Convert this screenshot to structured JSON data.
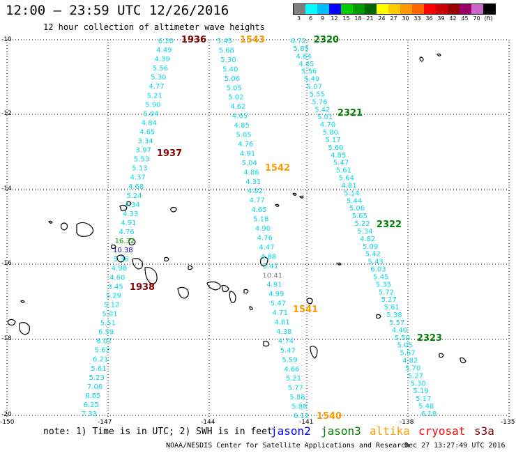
{
  "header": {
    "title": "12:00 – 23:59 UTC 12/26/2016",
    "subtitle": "12 hour collection of altimeter wave heights"
  },
  "legend": {
    "colors": [
      "#7f7f7f",
      "#00ffff",
      "#00bfff",
      "#0000ff",
      "#00cc00",
      "#009900",
      "#006600",
      "#ffff00",
      "#ffcc00",
      "#ff9900",
      "#ff6600",
      "#ff0000",
      "#cc0000",
      "#990000",
      "#990066",
      "#cc66cc",
      "#000000"
    ],
    "labels": [
      "3",
      "6",
      "9",
      "12",
      "15",
      "18",
      "21",
      "24",
      "27",
      "30",
      "33",
      "36",
      "39",
      "42",
      "45",
      "70",
      "(ft)"
    ]
  },
  "axes": {
    "lat_labels": [
      "-10",
      "-12",
      "-14",
      "-16",
      "-18",
      "-20"
    ],
    "lon_labels": [
      "-150",
      "-147",
      "-144",
      "-141",
      "-138",
      "-135"
    ]
  },
  "tracks": {
    "cyan_color": "#00d8e0",
    "track1": [
      "6.20",
      "4.49",
      "4.39",
      "5.56",
      "5.30",
      "4.77",
      "5.21",
      "5.90",
      "5.04",
      "4.84",
      "4.65",
      "3.34",
      "3.97",
      "5.53",
      "5.13",
      "4.37",
      "4.68",
      "5.24",
      "4.34",
      "4.33",
      "4.91",
      "4.76",
      "16.32",
      "10.38",
      "5.36",
      "4.98",
      "4.60",
      "3.45",
      "5.29",
      "5.12",
      "5.01",
      "5.51",
      "6.59",
      "6.07",
      "5.62",
      "6.21",
      "5.61",
      "5.23",
      "7.06",
      "6.65",
      "6.25",
      "7.33"
    ],
    "track2": [
      "5.45",
      "5.68",
      "5.30",
      "5.40",
      "5.06",
      "5.05",
      "5.02",
      "4.62",
      "4.65",
      "4.85",
      "5.05",
      "4.76",
      "4.91",
      "5.04",
      "4.86",
      "4.31",
      "4.82",
      "4.77",
      "4.65",
      "5.18",
      "4.90",
      "4.76",
      "4.47",
      "4.88",
      "5.41",
      "10.41",
      "4.91",
      "4.99",
      "5.47",
      "4.71",
      "4.81",
      "4.38",
      "4.74",
      "5.47",
      "5.59",
      "4.66",
      "5.21",
      "5.77",
      "5.88",
      "5.88",
      "6.12"
    ],
    "track3": [
      "6.72",
      "5.85",
      "4.64",
      "4.45",
      "5.56",
      "5.49",
      "5.07",
      "5.55",
      "5.76",
      "5.42",
      "5.01",
      "4.70",
      "5.80",
      "5.17",
      "5.60",
      "4.85",
      "5.47",
      "5.61",
      "5.64",
      "4.81",
      "5.14",
      "5.44",
      "5.06",
      "5.65",
      "5.22",
      "5.34",
      "4.82",
      "5.09",
      "5.42",
      "5.43",
      "6.03",
      "5.45",
      "5.35",
      "5.72",
      "5.27",
      "5.61",
      "5.38",
      "5.57",
      "4.40",
      "5.50",
      "5.05",
      "5.67",
      "4.82",
      "5.70",
      "5.27",
      "5.30",
      "5.19",
      "5.17",
      "5.48",
      "6.18"
    ]
  },
  "time_labels": [
    {
      "text": "1936",
      "color": "#800000"
    },
    {
      "text": "1937",
      "color": "#800000"
    },
    {
      "text": "1938",
      "color": "#800000"
    },
    {
      "text": "1543",
      "color": "#ff9900"
    },
    {
      "text": "1542",
      "color": "#ff9900"
    },
    {
      "text": "1541",
      "color": "#ff9900"
    },
    {
      "text": "1540",
      "color": "#ff9900"
    },
    {
      "text": "2320",
      "color": "#008000"
    },
    {
      "text": "2321",
      "color": "#008000"
    },
    {
      "text": "2322",
      "color": "#008000"
    },
    {
      "text": "2323",
      "color": "#008000"
    }
  ],
  "footer": {
    "note": "note: 1) Time is in UTC; 2) SWH is in feet",
    "satellites": [
      {
        "name": "jason2",
        "color": "#0000ff"
      },
      {
        "name": "jason3",
        "color": "#008000"
      },
      {
        "name": "altika",
        "color": "#ff9900"
      },
      {
        "name": "cryosat",
        "color": "#ff0000"
      },
      {
        "name": "s3a",
        "color": "#800000"
      }
    ],
    "credit": "NOAA/NESDIS Center for Satellite Applications and Research",
    "timestamp": "Dec 27 13:27:49 UTC 2016"
  }
}
